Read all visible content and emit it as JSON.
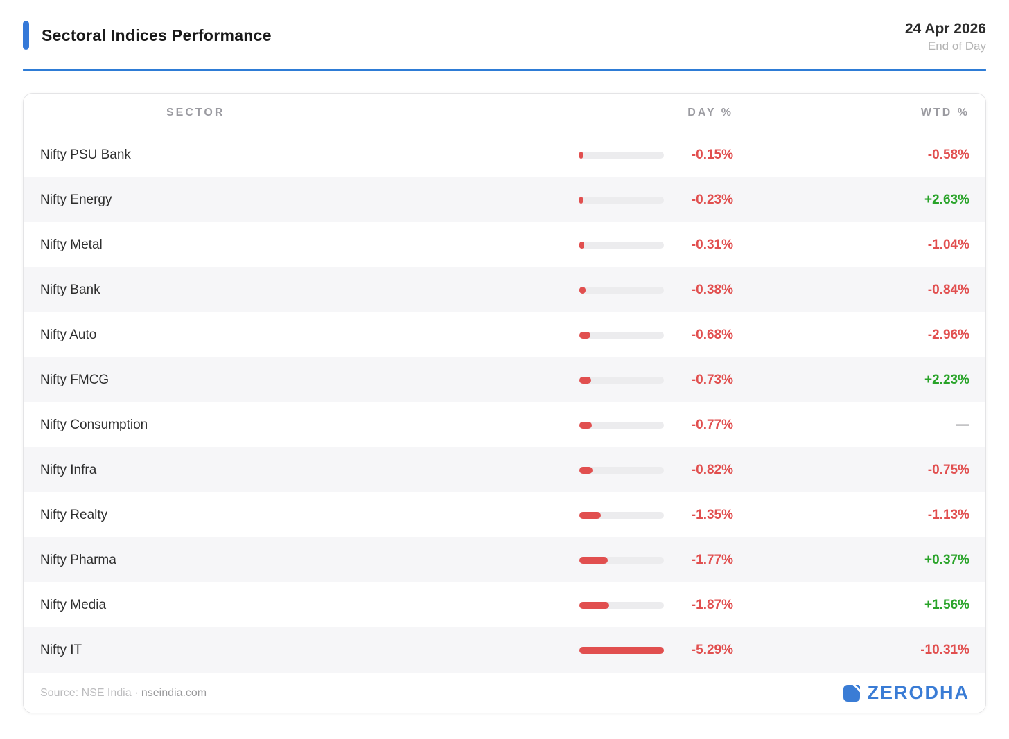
{
  "header": {
    "title": "Sectoral Indices Performance",
    "date": "24 Apr 2026",
    "subtitle": "End of Day"
  },
  "table": {
    "columns": [
      "SECTOR",
      "DAY %",
      "WTD %"
    ],
    "rows": [
      {
        "sector": "Nifty PSU Bank",
        "day": "-0.15%",
        "day_value": -0.15,
        "wtd": "-0.58%"
      },
      {
        "sector": "Nifty Energy",
        "day": "-0.23%",
        "day_value": -0.23,
        "wtd": "+2.63%"
      },
      {
        "sector": "Nifty Metal",
        "day": "-0.31%",
        "day_value": -0.31,
        "wtd": "-1.04%"
      },
      {
        "sector": "Nifty Bank",
        "day": "-0.38%",
        "day_value": -0.38,
        "wtd": "-0.84%"
      },
      {
        "sector": "Nifty Auto",
        "day": "-0.68%",
        "day_value": -0.68,
        "wtd": "-2.96%"
      },
      {
        "sector": "Nifty FMCG",
        "day": "-0.73%",
        "day_value": -0.73,
        "wtd": "+2.23%"
      },
      {
        "sector": "Nifty Consumption",
        "day": "-0.77%",
        "day_value": -0.77,
        "wtd": "—"
      },
      {
        "sector": "Nifty Infra",
        "day": "-0.82%",
        "day_value": -0.82,
        "wtd": "-0.75%"
      },
      {
        "sector": "Nifty Realty",
        "day": "-1.35%",
        "day_value": -1.35,
        "wtd": "-1.13%"
      },
      {
        "sector": "Nifty Pharma",
        "day": "-1.77%",
        "day_value": -1.77,
        "wtd": "+0.37%"
      },
      {
        "sector": "Nifty Media",
        "day": "-1.87%",
        "day_value": -1.87,
        "wtd": "+1.56%"
      },
      {
        "sector": "Nifty IT",
        "day": "-5.29%",
        "day_value": -5.29,
        "wtd": "-10.31%"
      }
    ]
  },
  "footer": {
    "source_label": "Source: NSE India ·",
    "source_link": "nseindia.com",
    "brand": "ZERODHA"
  },
  "colors": {
    "accent_blue": "#3579d8",
    "divider_blue": "#2e7cd6",
    "negative_red": "#e14f4f",
    "positive_green": "#29a329",
    "neutral_gray": "#8a8a8e",
    "bar_track": "#ececee",
    "brand_blue": "#3a7cd5"
  },
  "chart_data": {
    "type": "bar",
    "title": "Sectoral Indices Performance",
    "subtitle": "24 Apr 2026 · End of Day",
    "categories": [
      "Nifty PSU Bank",
      "Nifty Energy",
      "Nifty Metal",
      "Nifty Bank",
      "Nifty Auto",
      "Nifty FMCG",
      "Nifty Consumption",
      "Nifty Infra",
      "Nifty Realty",
      "Nifty Pharma",
      "Nifty Media",
      "Nifty IT"
    ],
    "series": [
      {
        "name": "DAY %",
        "values": [
          -0.15,
          -0.23,
          -0.31,
          -0.38,
          -0.68,
          -0.73,
          -0.77,
          -0.82,
          -1.35,
          -1.77,
          -1.87,
          -5.29
        ]
      },
      {
        "name": "WTD %",
        "values": [
          -0.58,
          2.63,
          -1.04,
          -0.84,
          -2.96,
          2.23,
          null,
          -0.75,
          -1.13,
          0.37,
          1.56,
          -10.31
        ]
      }
    ],
    "xlabel": "",
    "ylabel": "",
    "bar_axis_max": 5.29,
    "orientation": "horizontal",
    "grid": false,
    "legend": false
  }
}
